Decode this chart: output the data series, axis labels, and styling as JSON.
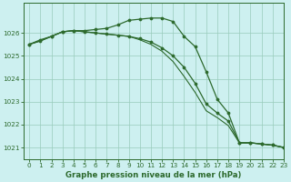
{
  "title": "Graphe pression niveau de la mer (hPa)",
  "background_color": "#cdf0f0",
  "grid_color": "#99ccbb",
  "line_color": "#2d6a2d",
  "marker_color": "#2d6a2d",
  "xlim": [
    -0.5,
    23
  ],
  "ylim": [
    1020.5,
    1027.3
  ],
  "yticks": [
    1021,
    1022,
    1023,
    1024,
    1025,
    1026
  ],
  "xticks": [
    0,
    1,
    2,
    3,
    4,
    5,
    6,
    7,
    8,
    9,
    10,
    11,
    12,
    13,
    14,
    15,
    16,
    17,
    18,
    19,
    20,
    21,
    22,
    23
  ],
  "line1_x": [
    0,
    1,
    2,
    3,
    4,
    5,
    6,
    7,
    8,
    9,
    10,
    11,
    12,
    13,
    14,
    15,
    16,
    17,
    18,
    19,
    20,
    21,
    22,
    23
  ],
  "line1": [
    1025.5,
    1025.7,
    1025.85,
    1026.05,
    1026.1,
    1026.1,
    1026.15,
    1026.2,
    1026.35,
    1026.55,
    1026.6,
    1026.65,
    1026.65,
    1026.5,
    1025.85,
    1025.4,
    1024.3,
    1023.1,
    1022.5,
    1021.2,
    1021.2,
    1021.15,
    1021.1,
    1021.0
  ],
  "line2_x": [
    0,
    1,
    2,
    3,
    4,
    5,
    6,
    7,
    8,
    9,
    10,
    11,
    12,
    13,
    14,
    15,
    16,
    17,
    18,
    19,
    20,
    21,
    22,
    23
  ],
  "line2": [
    1025.5,
    1025.65,
    1025.85,
    1026.05,
    1026.1,
    1026.05,
    1026.0,
    1025.95,
    1025.9,
    1025.85,
    1025.75,
    1025.6,
    1025.35,
    1025.0,
    1024.5,
    1023.8,
    1022.9,
    1022.5,
    1022.15,
    1021.2,
    1021.2,
    1021.15,
    1021.1,
    1021.0
  ],
  "line3_x": [
    0,
    1,
    2,
    3,
    4,
    5,
    6,
    7,
    8,
    9,
    10,
    11,
    12,
    13,
    14,
    15,
    16,
    17,
    18,
    19,
    20,
    21,
    22,
    23
  ],
  "line3": [
    1025.5,
    1025.65,
    1025.85,
    1026.05,
    1026.1,
    1026.05,
    1026.0,
    1025.95,
    1025.9,
    1025.85,
    1025.7,
    1025.5,
    1025.2,
    1024.75,
    1024.1,
    1023.4,
    1022.6,
    1022.3,
    1021.95,
    1021.2,
    1021.2,
    1021.15,
    1021.1,
    1021.0
  ]
}
